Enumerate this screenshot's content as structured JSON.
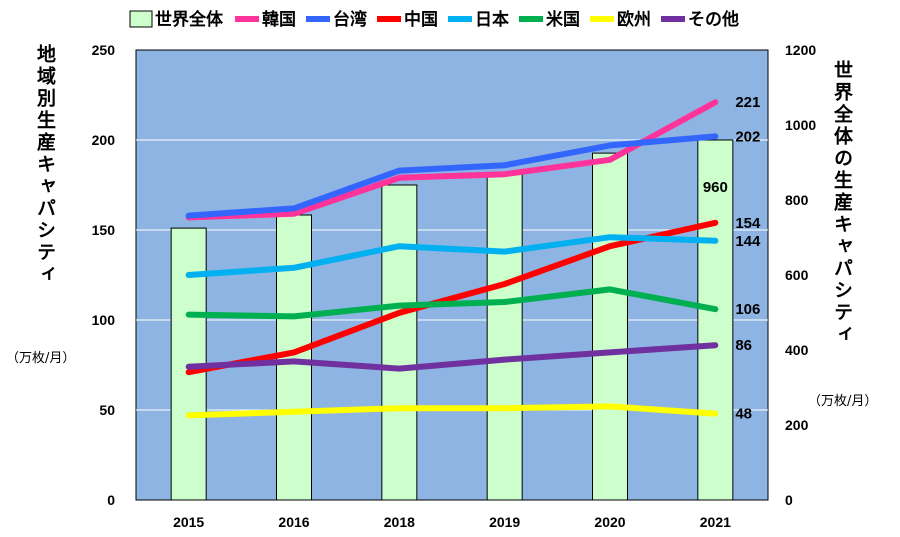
{
  "chart_data": {
    "type": "bar+line",
    "categories": [
      "2015",
      "2016",
      "2018",
      "2019",
      "2020",
      "2021"
    ],
    "bar_series": {
      "name": "世界全体",
      "axis": "right",
      "values": [
        725,
        760,
        840,
        870,
        925,
        960
      ],
      "color": "#ccffcc",
      "labels": [
        null,
        null,
        null,
        null,
        null,
        "960"
      ]
    },
    "series": [
      {
        "name": "韓国",
        "color": "#ff3399",
        "values": [
          157,
          159,
          179,
          181,
          189,
          221
        ],
        "end_label": "221"
      },
      {
        "name": "台湾",
        "color": "#3366ff",
        "values": [
          158,
          162,
          183,
          186,
          197,
          202
        ],
        "end_label": "202"
      },
      {
        "name": "中国",
        "color": "#ff0000",
        "values": [
          71,
          82,
          104,
          120,
          141,
          154
        ],
        "end_label": "154"
      },
      {
        "name": "日本",
        "color": "#00b0f0",
        "values": [
          125,
          129,
          141,
          138,
          146,
          144
        ],
        "end_label": "144"
      },
      {
        "name": "米国",
        "color": "#00b050",
        "values": [
          103,
          102,
          108,
          110,
          117,
          106
        ],
        "end_label": "106"
      },
      {
        "name": "欧州",
        "color": "#ffff00",
        "values": [
          47,
          49,
          51,
          51,
          52,
          48
        ],
        "end_label": "48"
      },
      {
        "name": "その他",
        "color": "#7030a0",
        "values": [
          74,
          77,
          73,
          78,
          82,
          86
        ],
        "end_label": "86"
      }
    ],
    "left_axis": {
      "title": "地域別生産キャパシティ",
      "unit": "（万枚/月）",
      "ylim": [
        0,
        250
      ],
      "ticks": [
        "0",
        "50",
        "100",
        "150",
        "200",
        "250"
      ]
    },
    "right_axis": {
      "title": "世界全体の生産キャパシティ",
      "unit": "（万枚/月）",
      "ylim": [
        0,
        1200
      ],
      "ticks": [
        "0",
        "200",
        "400",
        "600",
        "800",
        "1000",
        "1200"
      ]
    },
    "plot_background": "#8db4e2",
    "legend_position": "top"
  }
}
